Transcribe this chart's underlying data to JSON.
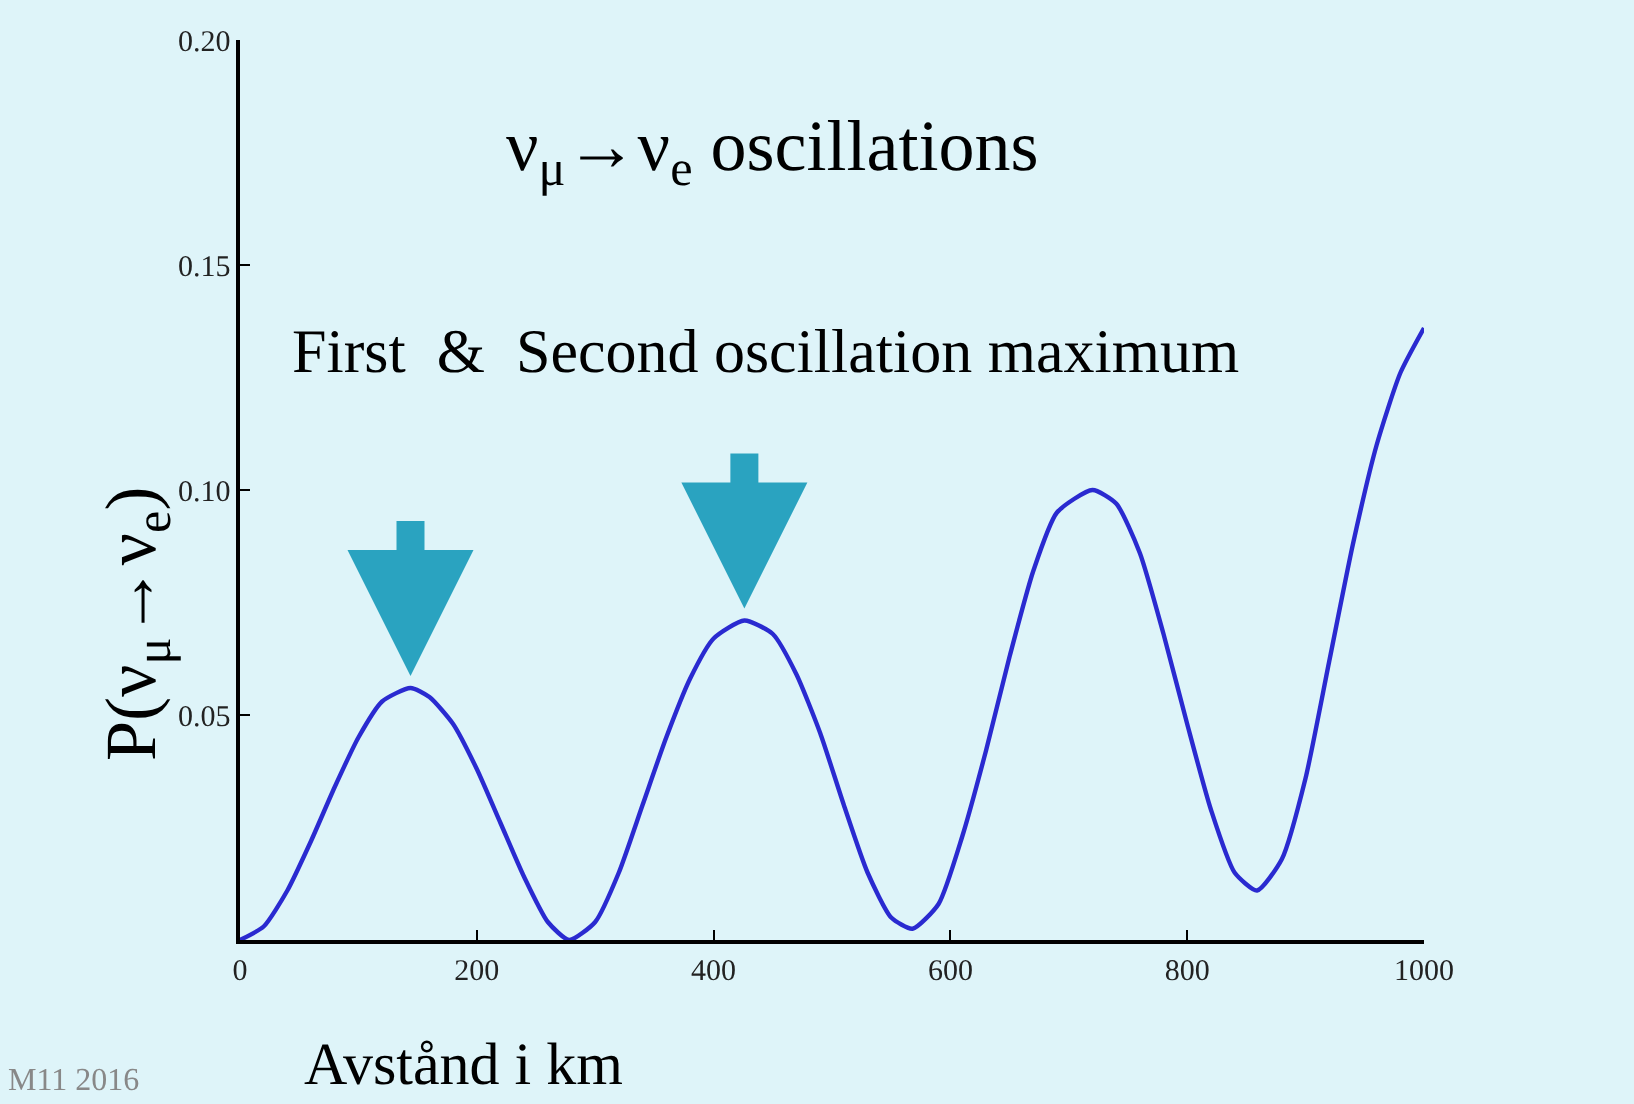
{
  "chart_data": {
    "type": "line",
    "title": "ν$_{μ}$→ν$_{e}$ oscillations",
    "xlabel": "Avstånd i km",
    "ylabel": "P(ν$_{μ}$→ν$_{e}$)",
    "annotations": [
      "First  &  Second oscillation maximum",
      "M11 2016"
    ],
    "x": [
      0,
      20,
      40,
      60,
      80,
      100,
      120,
      144,
      160,
      180,
      200,
      220,
      240,
      260,
      278,
      300,
      320,
      340,
      360,
      380,
      400,
      426,
      450,
      470,
      490,
      510,
      530,
      550,
      568,
      590,
      610,
      630,
      650,
      670,
      690,
      720,
      740,
      760,
      780,
      800,
      820,
      840,
      859,
      880,
      900,
      920,
      940,
      960,
      980,
      1000
    ],
    "series": [
      {
        "color": "#2a2ad0",
        "values": [
          0,
          0.003,
          0.011,
          0.022,
          0.034,
          0.045,
          0.053,
          0.056,
          0.054,
          0.048,
          0.038,
          0.026,
          0.014,
          0.004,
          0,
          0.004,
          0.015,
          0.03,
          0.045,
          0.058,
          0.067,
          0.071,
          0.068,
          0.059,
          0.046,
          0.03,
          0.015,
          0.005,
          0.0025,
          0.008,
          0.023,
          0.042,
          0.063,
          0.082,
          0.095,
          0.1,
          0.097,
          0.086,
          0.068,
          0.048,
          0.029,
          0.015,
          0.011,
          0.018,
          0.036,
          0.062,
          0.088,
          0.11,
          0.126,
          0.136
        ]
      }
    ],
    "xlim": [
      0,
      1000
    ],
    "ylim": [
      0,
      0.2
    ],
    "xticks": [
      0,
      200,
      400,
      600,
      800,
      1000
    ],
    "yticks": [
      {
        "value": 0.05,
        "label": "0.05"
      },
      {
        "value": 0.1,
        "label": "0.10"
      },
      {
        "value": 0.15,
        "label": "0.15"
      },
      {
        "value": 0.2,
        "label": "0.20"
      }
    ],
    "grid": false,
    "legend": false,
    "marker": "none",
    "line_style": "solid"
  }
}
